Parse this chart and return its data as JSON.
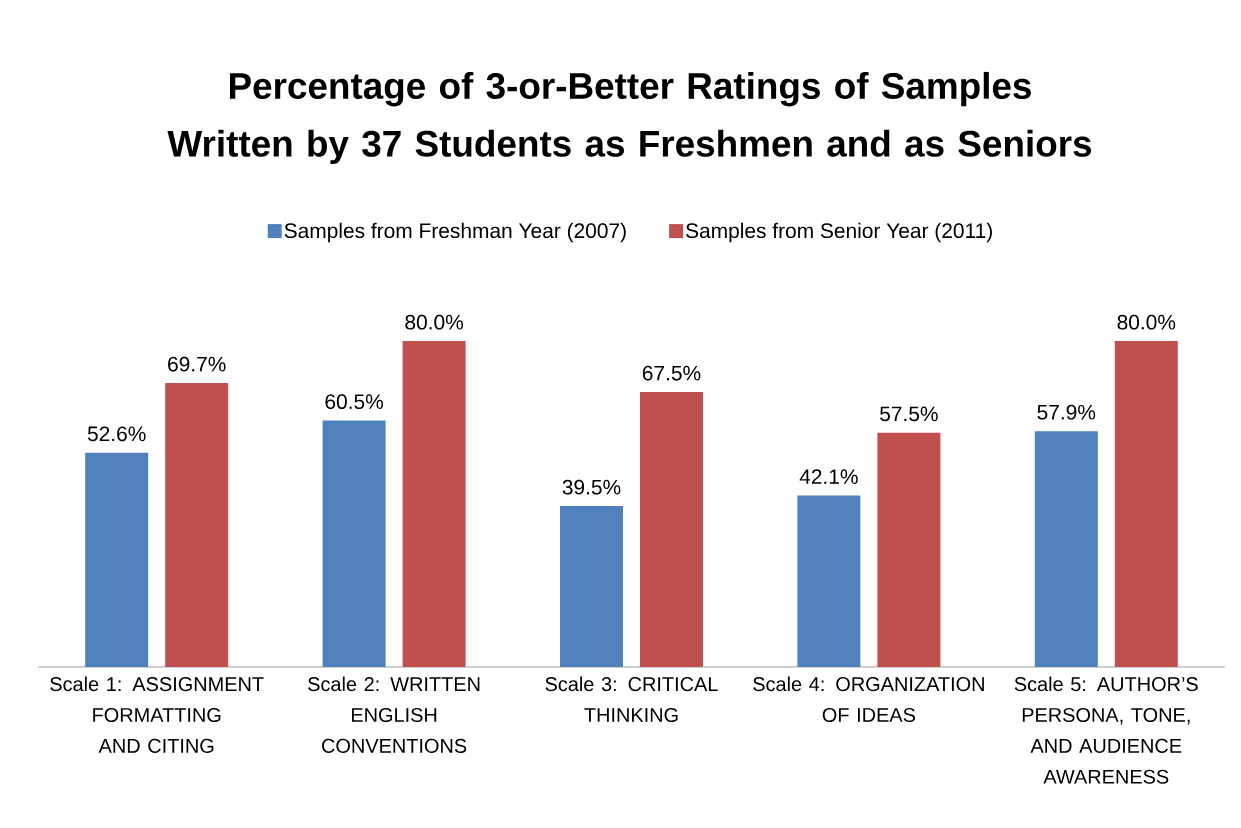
{
  "chart_data": {
    "type": "bar",
    "title": "Percentage of 3-or-Better Ratings of Samples Written by 37 Students as Freshmen and as Seniors",
    "categories": [
      "Scale 1: ASSIGNMENT FORMATTING AND CITING",
      "Scale 2: WRITTEN ENGLISH CONVENTIONS",
      "Scale 3: CRITICAL THINKING",
      "Scale 4: ORGANIZATION OF IDEAS",
      "Scale 5: AUTHOR’S PERSONA, TONE, AND AUDIENCE AWARENESS"
    ],
    "series": [
      {
        "name": "Samples from Freshman Year (2007)",
        "color": "#4f81bd",
        "values": [
          52.6,
          60.5,
          39.5,
          42.1,
          57.9
        ],
        "value_labels": [
          "52.6%",
          "60.5%",
          "39.5%",
          "42.1%",
          "57.9%"
        ]
      },
      {
        "name": "Samples from Senior Year (2011)",
        "color": "#c0504d",
        "values": [
          69.7,
          80.0,
          67.5,
          57.5,
          80.0
        ],
        "value_labels": [
          "69.7%",
          "80.0%",
          "67.5%",
          "57.5%",
          "80.0%"
        ]
      }
    ],
    "tick_labels": "x",
    "legend": "top"
  }
}
